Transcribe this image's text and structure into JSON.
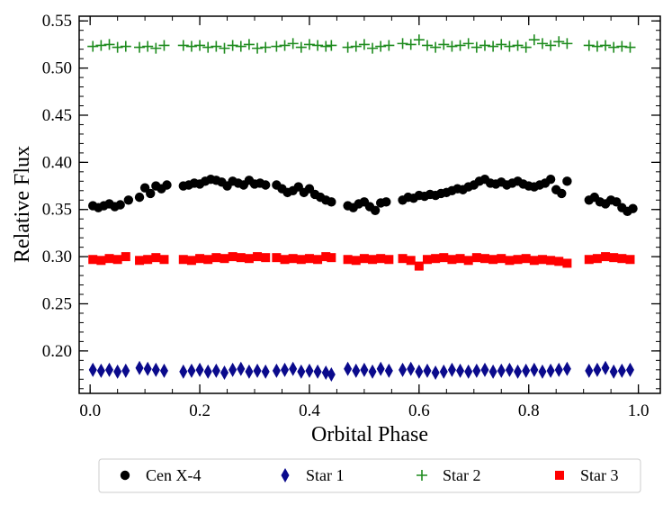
{
  "chart_data": {
    "type": "scatter",
    "title": "",
    "xlabel": "Orbital Phase",
    "ylabel": "Relative Flux",
    "xlim": [
      -0.02,
      1.04
    ],
    "ylim": [
      0.155,
      0.555
    ],
    "xticks": [
      0.0,
      0.2,
      0.4,
      0.6,
      0.8,
      1.0
    ],
    "xtick_labels": [
      "0.0",
      "0.2",
      "0.4",
      "0.6",
      "0.8",
      "1.0"
    ],
    "yticks": [
      0.2,
      0.25,
      0.3,
      0.35,
      0.4,
      0.45,
      0.5,
      0.55
    ],
    "ytick_labels": [
      "0.20",
      "0.25",
      "0.30",
      "0.35",
      "0.40",
      "0.45",
      "0.50",
      "0.55"
    ],
    "x_minor_step": 0.05,
    "y_minor_step": 0.01,
    "legend_position": "below-plot",
    "series": [
      {
        "name": "Cen X-4",
        "marker": "circle",
        "color": "#000000",
        "points": [
          [
            0.005,
            0.354
          ],
          [
            0.015,
            0.352
          ],
          [
            0.025,
            0.354
          ],
          [
            0.035,
            0.356
          ],
          [
            0.045,
            0.353
          ],
          [
            0.055,
            0.355
          ],
          [
            0.07,
            0.36
          ],
          [
            0.09,
            0.363
          ],
          [
            0.1,
            0.373
          ],
          [
            0.11,
            0.367
          ],
          [
            0.12,
            0.375
          ],
          [
            0.13,
            0.372
          ],
          [
            0.14,
            0.376
          ],
          [
            0.17,
            0.375
          ],
          [
            0.18,
            0.376
          ],
          [
            0.19,
            0.378
          ],
          [
            0.2,
            0.377
          ],
          [
            0.21,
            0.38
          ],
          [
            0.22,
            0.382
          ],
          [
            0.23,
            0.381
          ],
          [
            0.24,
            0.379
          ],
          [
            0.25,
            0.375
          ],
          [
            0.26,
            0.38
          ],
          [
            0.27,
            0.378
          ],
          [
            0.28,
            0.376
          ],
          [
            0.29,
            0.381
          ],
          [
            0.3,
            0.377
          ],
          [
            0.31,
            0.378
          ],
          [
            0.32,
            0.376
          ],
          [
            0.34,
            0.376
          ],
          [
            0.35,
            0.372
          ],
          [
            0.36,
            0.368
          ],
          [
            0.37,
            0.37
          ],
          [
            0.38,
            0.374
          ],
          [
            0.39,
            0.368
          ],
          [
            0.4,
            0.372
          ],
          [
            0.41,
            0.366
          ],
          [
            0.42,
            0.363
          ],
          [
            0.43,
            0.36
          ],
          [
            0.44,
            0.358
          ],
          [
            0.47,
            0.354
          ],
          [
            0.48,
            0.352
          ],
          [
            0.49,
            0.356
          ],
          [
            0.5,
            0.358
          ],
          [
            0.51,
            0.353
          ],
          [
            0.52,
            0.349
          ],
          [
            0.53,
            0.357
          ],
          [
            0.54,
            0.358
          ],
          [
            0.57,
            0.36
          ],
          [
            0.58,
            0.363
          ],
          [
            0.59,
            0.362
          ],
          [
            0.6,
            0.365
          ],
          [
            0.61,
            0.364
          ],
          [
            0.62,
            0.366
          ],
          [
            0.63,
            0.365
          ],
          [
            0.64,
            0.367
          ],
          [
            0.65,
            0.368
          ],
          [
            0.66,
            0.37
          ],
          [
            0.67,
            0.372
          ],
          [
            0.68,
            0.371
          ],
          [
            0.69,
            0.374
          ],
          [
            0.7,
            0.376
          ],
          [
            0.71,
            0.38
          ],
          [
            0.72,
            0.382
          ],
          [
            0.73,
            0.378
          ],
          [
            0.74,
            0.377
          ],
          [
            0.75,
            0.379
          ],
          [
            0.76,
            0.376
          ],
          [
            0.77,
            0.378
          ],
          [
            0.78,
            0.38
          ],
          [
            0.79,
            0.377
          ],
          [
            0.8,
            0.375
          ],
          [
            0.81,
            0.374
          ],
          [
            0.82,
            0.376
          ],
          [
            0.83,
            0.378
          ],
          [
            0.84,
            0.382
          ],
          [
            0.85,
            0.371
          ],
          [
            0.86,
            0.367
          ],
          [
            0.87,
            0.38
          ],
          [
            0.91,
            0.36
          ],
          [
            0.92,
            0.363
          ],
          [
            0.93,
            0.358
          ],
          [
            0.94,
            0.356
          ],
          [
            0.95,
            0.36
          ],
          [
            0.96,
            0.358
          ],
          [
            0.97,
            0.352
          ],
          [
            0.98,
            0.348
          ],
          [
            0.99,
            0.351
          ]
        ]
      },
      {
        "name": "Star 1",
        "marker": "diamond",
        "color": "#0a0a8c",
        "points": [
          [
            0.005,
            0.18
          ],
          [
            0.02,
            0.179
          ],
          [
            0.035,
            0.18
          ],
          [
            0.05,
            0.178
          ],
          [
            0.065,
            0.179
          ],
          [
            0.09,
            0.182
          ],
          [
            0.105,
            0.181
          ],
          [
            0.12,
            0.18
          ],
          [
            0.135,
            0.179
          ],
          [
            0.17,
            0.178
          ],
          [
            0.185,
            0.179
          ],
          [
            0.2,
            0.18
          ],
          [
            0.215,
            0.178
          ],
          [
            0.23,
            0.179
          ],
          [
            0.245,
            0.177
          ],
          [
            0.26,
            0.18
          ],
          [
            0.275,
            0.181
          ],
          [
            0.29,
            0.178
          ],
          [
            0.305,
            0.179
          ],
          [
            0.32,
            0.178
          ],
          [
            0.34,
            0.179
          ],
          [
            0.355,
            0.18
          ],
          [
            0.37,
            0.181
          ],
          [
            0.385,
            0.178
          ],
          [
            0.4,
            0.179
          ],
          [
            0.415,
            0.178
          ],
          [
            0.43,
            0.177
          ],
          [
            0.44,
            0.175
          ],
          [
            0.47,
            0.181
          ],
          [
            0.485,
            0.179
          ],
          [
            0.5,
            0.18
          ],
          [
            0.515,
            0.178
          ],
          [
            0.53,
            0.181
          ],
          [
            0.545,
            0.179
          ],
          [
            0.57,
            0.18
          ],
          [
            0.585,
            0.181
          ],
          [
            0.6,
            0.178
          ],
          [
            0.615,
            0.179
          ],
          [
            0.63,
            0.177
          ],
          [
            0.645,
            0.178
          ],
          [
            0.66,
            0.18
          ],
          [
            0.675,
            0.179
          ],
          [
            0.69,
            0.178
          ],
          [
            0.705,
            0.179
          ],
          [
            0.72,
            0.18
          ],
          [
            0.735,
            0.178
          ],
          [
            0.75,
            0.179
          ],
          [
            0.765,
            0.18
          ],
          [
            0.78,
            0.178
          ],
          [
            0.795,
            0.179
          ],
          [
            0.81,
            0.18
          ],
          [
            0.825,
            0.178
          ],
          [
            0.84,
            0.179
          ],
          [
            0.855,
            0.18
          ],
          [
            0.87,
            0.181
          ],
          [
            0.91,
            0.179
          ],
          [
            0.925,
            0.18
          ],
          [
            0.94,
            0.182
          ],
          [
            0.955,
            0.178
          ],
          [
            0.97,
            0.179
          ],
          [
            0.985,
            0.18
          ]
        ]
      },
      {
        "name": "Star 2",
        "marker": "plus",
        "color": "#1f8c1f",
        "points": [
          [
            0.005,
            0.523
          ],
          [
            0.02,
            0.524
          ],
          [
            0.035,
            0.525
          ],
          [
            0.05,
            0.522
          ],
          [
            0.065,
            0.523
          ],
          [
            0.09,
            0.522
          ],
          [
            0.105,
            0.523
          ],
          [
            0.12,
            0.521
          ],
          [
            0.135,
            0.524
          ],
          [
            0.17,
            0.524
          ],
          [
            0.185,
            0.523
          ],
          [
            0.2,
            0.524
          ],
          [
            0.215,
            0.522
          ],
          [
            0.23,
            0.523
          ],
          [
            0.245,
            0.521
          ],
          [
            0.26,
            0.524
          ],
          [
            0.275,
            0.523
          ],
          [
            0.29,
            0.525
          ],
          [
            0.305,
            0.521
          ],
          [
            0.32,
            0.522
          ],
          [
            0.34,
            0.523
          ],
          [
            0.355,
            0.524
          ],
          [
            0.37,
            0.526
          ],
          [
            0.385,
            0.522
          ],
          [
            0.4,
            0.525
          ],
          [
            0.415,
            0.524
          ],
          [
            0.43,
            0.523
          ],
          [
            0.44,
            0.524
          ],
          [
            0.47,
            0.522
          ],
          [
            0.485,
            0.523
          ],
          [
            0.5,
            0.525
          ],
          [
            0.515,
            0.521
          ],
          [
            0.53,
            0.523
          ],
          [
            0.545,
            0.524
          ],
          [
            0.57,
            0.526
          ],
          [
            0.585,
            0.525
          ],
          [
            0.6,
            0.53
          ],
          [
            0.615,
            0.524
          ],
          [
            0.63,
            0.522
          ],
          [
            0.645,
            0.525
          ],
          [
            0.66,
            0.523
          ],
          [
            0.675,
            0.524
          ],
          [
            0.69,
            0.526
          ],
          [
            0.705,
            0.522
          ],
          [
            0.72,
            0.524
          ],
          [
            0.735,
            0.523
          ],
          [
            0.75,
            0.525
          ],
          [
            0.765,
            0.523
          ],
          [
            0.78,
            0.524
          ],
          [
            0.795,
            0.522
          ],
          [
            0.81,
            0.53
          ],
          [
            0.825,
            0.526
          ],
          [
            0.84,
            0.524
          ],
          [
            0.855,
            0.528
          ],
          [
            0.87,
            0.526
          ],
          [
            0.91,
            0.524
          ],
          [
            0.925,
            0.523
          ],
          [
            0.94,
            0.524
          ],
          [
            0.955,
            0.522
          ],
          [
            0.97,
            0.523
          ],
          [
            0.985,
            0.522
          ]
        ]
      },
      {
        "name": "Star 3",
        "marker": "square",
        "color": "#ff0000",
        "points": [
          [
            0.005,
            0.297
          ],
          [
            0.02,
            0.296
          ],
          [
            0.035,
            0.298
          ],
          [
            0.05,
            0.297
          ],
          [
            0.065,
            0.3
          ],
          [
            0.09,
            0.296
          ],
          [
            0.105,
            0.297
          ],
          [
            0.12,
            0.299
          ],
          [
            0.135,
            0.297
          ],
          [
            0.17,
            0.297
          ],
          [
            0.185,
            0.296
          ],
          [
            0.2,
            0.298
          ],
          [
            0.215,
            0.297
          ],
          [
            0.23,
            0.299
          ],
          [
            0.245,
            0.298
          ],
          [
            0.26,
            0.3
          ],
          [
            0.275,
            0.299
          ],
          [
            0.29,
            0.298
          ],
          [
            0.305,
            0.3
          ],
          [
            0.32,
            0.299
          ],
          [
            0.34,
            0.299
          ],
          [
            0.355,
            0.297
          ],
          [
            0.37,
            0.298
          ],
          [
            0.385,
            0.297
          ],
          [
            0.4,
            0.298
          ],
          [
            0.415,
            0.297
          ],
          [
            0.43,
            0.3
          ],
          [
            0.44,
            0.299
          ],
          [
            0.47,
            0.297
          ],
          [
            0.485,
            0.296
          ],
          [
            0.5,
            0.298
          ],
          [
            0.515,
            0.297
          ],
          [
            0.53,
            0.298
          ],
          [
            0.545,
            0.297
          ],
          [
            0.57,
            0.298
          ],
          [
            0.585,
            0.296
          ],
          [
            0.6,
            0.29
          ],
          [
            0.615,
            0.297
          ],
          [
            0.63,
            0.298
          ],
          [
            0.645,
            0.299
          ],
          [
            0.66,
            0.297
          ],
          [
            0.675,
            0.298
          ],
          [
            0.69,
            0.296
          ],
          [
            0.705,
            0.299
          ],
          [
            0.72,
            0.298
          ],
          [
            0.735,
            0.297
          ],
          [
            0.75,
            0.298
          ],
          [
            0.765,
            0.296
          ],
          [
            0.78,
            0.297
          ],
          [
            0.795,
            0.298
          ],
          [
            0.81,
            0.296
          ],
          [
            0.825,
            0.297
          ],
          [
            0.84,
            0.296
          ],
          [
            0.855,
            0.295
          ],
          [
            0.87,
            0.293
          ],
          [
            0.91,
            0.297
          ],
          [
            0.925,
            0.298
          ],
          [
            0.94,
            0.3
          ],
          [
            0.955,
            0.299
          ],
          [
            0.97,
            0.298
          ],
          [
            0.985,
            0.297
          ]
        ]
      }
    ]
  }
}
